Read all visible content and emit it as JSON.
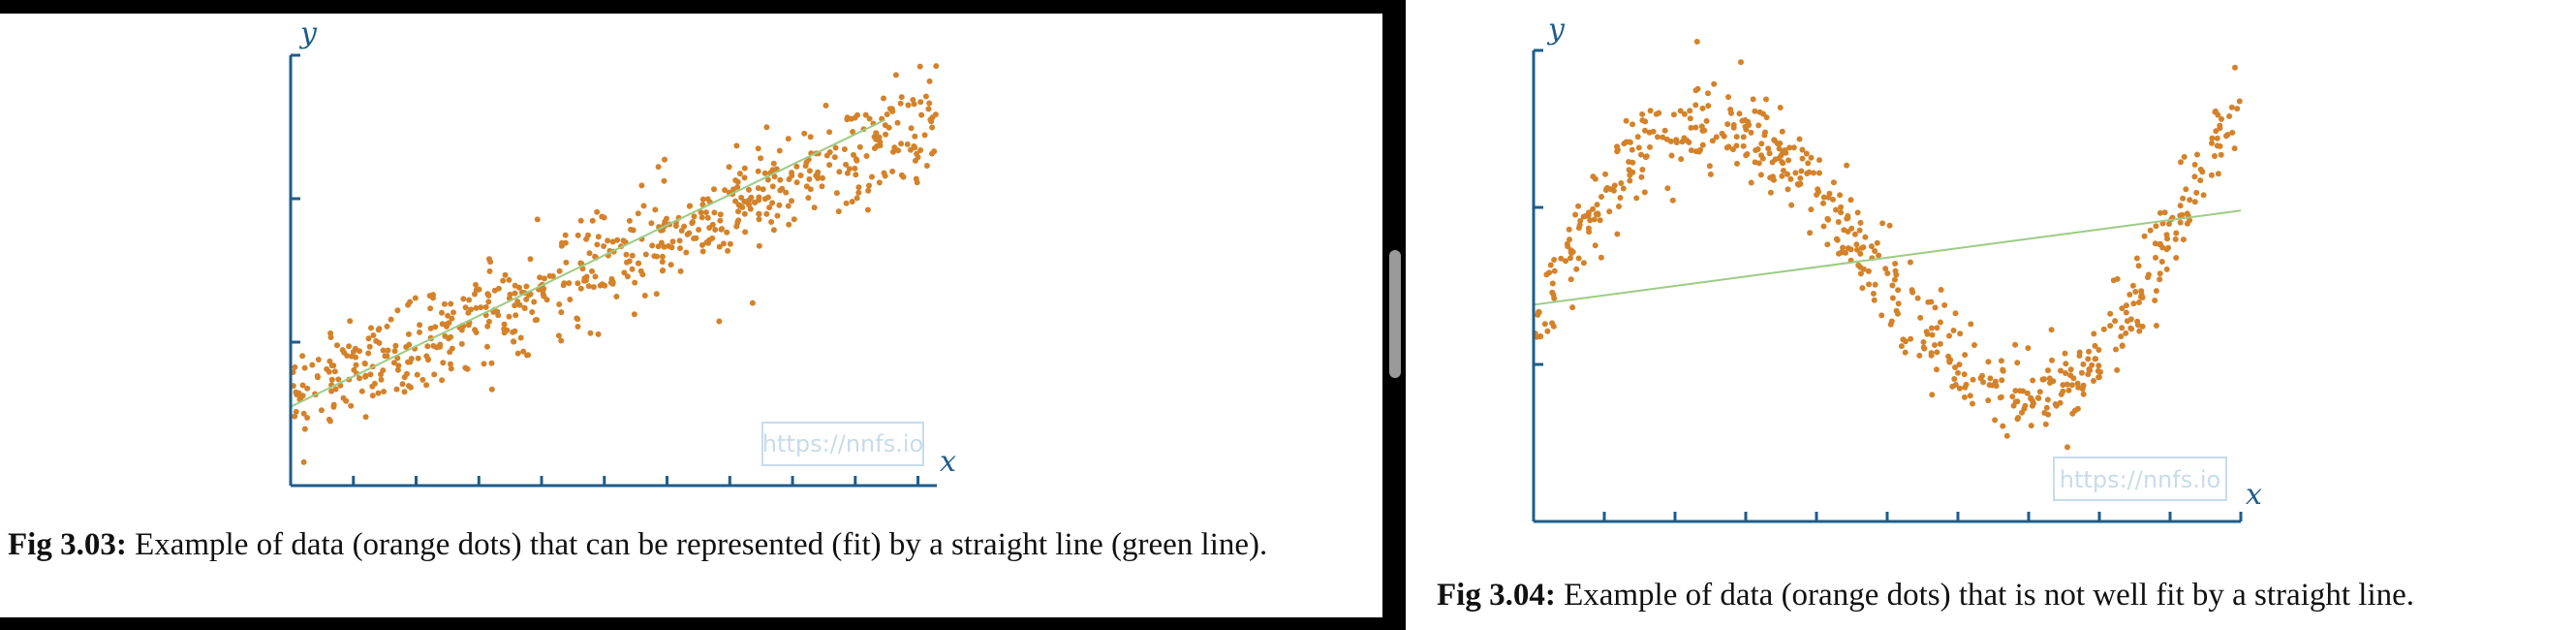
{
  "left_figure": {
    "caption_label": "Fig 3.03:",
    "caption_text": " Example of data (orange dots) that can be represented (fit) by a straight line (green line).",
    "watermark": "https://nnfs.io"
  },
  "right_figure": {
    "caption_label": "Fig 3.04:",
    "caption_text": " Example of data (orange dots) that is not well fit by a straight line.",
    "watermark": "https://nnfs.io"
  },
  "colors": {
    "points": "#d4822a",
    "fit_line": "#9ccc86",
    "axis": "#1e5c8a",
    "watermark": "#c7dcea"
  },
  "chart_data": [
    {
      "type": "scatter",
      "xlabel": "x",
      "ylabel": "y",
      "xlim": [
        0,
        1
      ],
      "ylim": [
        0,
        3
      ],
      "grid": false,
      "series": [
        {
          "kind": "points",
          "count": 620,
          "trend": "linear",
          "start_y": 0.62,
          "end_y": 2.55,
          "noise": 0.3
        },
        {
          "kind": "fit-line",
          "x": [
            0,
            0.92
          ],
          "y": [
            0.55,
            2.55
          ]
        }
      ]
    },
    {
      "type": "scatter",
      "xlabel": "x",
      "ylabel": "y",
      "xlim": [
        0,
        1
      ],
      "ylim": [
        0,
        3
      ],
      "grid": false,
      "series": [
        {
          "kind": "points",
          "count": 600,
          "trend": "cubic-wave",
          "noise": 0.25
        },
        {
          "kind": "fit-line",
          "x": [
            0,
            1
          ],
          "y": [
            1.38,
            1.98
          ]
        }
      ]
    }
  ]
}
